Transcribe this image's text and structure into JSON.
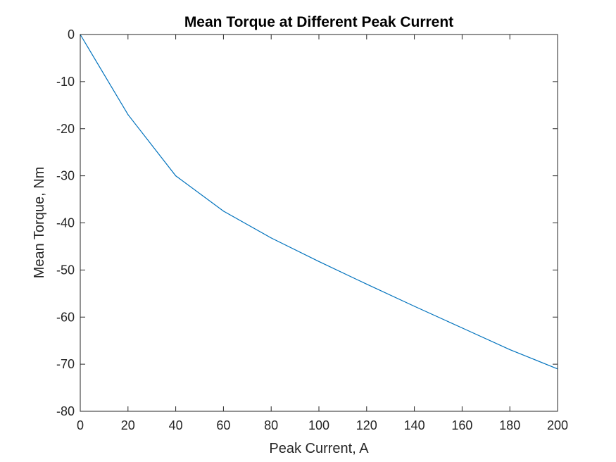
{
  "chart_data": {
    "type": "line",
    "title": "Mean Torque at Different Peak Current",
    "xlabel": "Peak Current, A",
    "ylabel": "Mean Torque, Nm",
    "xlim": [
      0,
      200
    ],
    "ylim": [
      -80,
      0
    ],
    "xticks": [
      0,
      20,
      40,
      60,
      80,
      100,
      120,
      140,
      160,
      180,
      200
    ],
    "yticks": [
      0,
      -10,
      -20,
      -30,
      -40,
      -50,
      -60,
      -70,
      -80
    ],
    "grid": false,
    "legend": false,
    "series": [
      {
        "color": "#0072bd",
        "x": [
          0,
          20,
          40,
          60,
          80,
          100,
          120,
          140,
          160,
          180,
          200
        ],
        "y": [
          0,
          -17,
          -30,
          -37.5,
          -43.2,
          -48.2,
          -53,
          -57.7,
          -62.3,
          -66.9,
          -71
        ]
      }
    ]
  }
}
